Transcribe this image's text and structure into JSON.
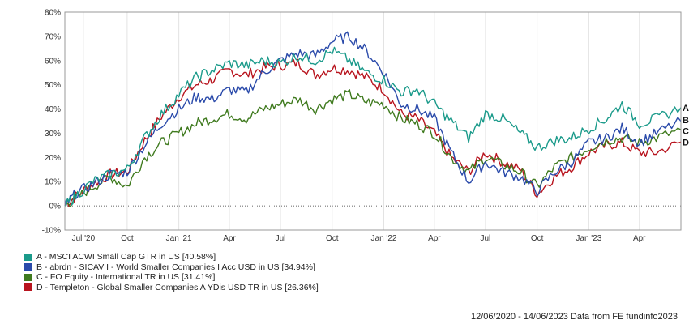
{
  "chart_data": {
    "type": "line",
    "title": "",
    "xlabel": "",
    "ylabel": "",
    "ylim": [
      -10,
      80
    ],
    "yticks": [
      "-10%",
      "0%",
      "10%",
      "20%",
      "30%",
      "40%",
      "50%",
      "60%",
      "70%",
      "80%"
    ],
    "xticks": [
      "Jul '20",
      "Oct",
      "Jan '21",
      "Apr",
      "Jul",
      "Oct",
      "Jan '22",
      "Apr",
      "Jul",
      "Oct",
      "Jan '23",
      "Apr"
    ],
    "x_range": [
      "2020-06-12",
      "2023-06-14"
    ],
    "grid": "vertical gridlines at each month tick; dotted zero line",
    "x": [
      "2020-06-12",
      "2020-07-01",
      "2020-08-01",
      "2020-09-01",
      "2020-10-01",
      "2020-11-01",
      "2020-12-01",
      "2021-01-01",
      "2021-02-01",
      "2021-03-01",
      "2021-04-01",
      "2021-05-01",
      "2021-06-01",
      "2021-07-01",
      "2021-08-01",
      "2021-09-01",
      "2021-10-01",
      "2021-11-01",
      "2021-12-01",
      "2022-01-01",
      "2022-02-01",
      "2022-03-01",
      "2022-04-01",
      "2022-05-01",
      "2022-06-01",
      "2022-07-01",
      "2022-08-01",
      "2022-09-01",
      "2022-10-01",
      "2022-11-01",
      "2022-12-01",
      "2023-01-01",
      "2023-02-01",
      "2023-03-01",
      "2023-04-01",
      "2023-05-01",
      "2023-06-14"
    ],
    "series": [
      {
        "name": "A - MSCI ACWI Small Cap GTR in US [40.58%]",
        "end_marker": "A",
        "color": "#1a9a8a",
        "values": [
          0,
          4,
          10,
          13,
          15,
          28,
          38,
          46,
          53,
          56,
          59,
          58,
          60,
          59,
          62,
          60,
          64,
          60,
          55,
          52,
          47,
          48,
          42,
          35,
          28,
          38,
          36,
          30,
          24,
          27,
          28,
          32,
          36,
          42,
          34,
          36,
          40.58
        ]
      },
      {
        "name": "B - abrdn - SICAV I - World Smaller Companies I Acc USD in US [34.94%]",
        "end_marker": "B",
        "color": "#2a4aaa",
        "values": [
          0,
          5,
          9,
          13,
          14,
          25,
          34,
          40,
          45,
          44,
          48,
          47,
          55,
          60,
          63,
          62,
          68,
          70,
          64,
          55,
          42,
          40,
          36,
          22,
          10,
          18,
          14,
          12,
          6,
          14,
          18,
          26,
          28,
          32,
          26,
          30,
          34.94
        ]
      },
      {
        "name": "C - FO Equity - International TR in US [31.41%]",
        "end_marker": "C",
        "color": "#3f7a1e",
        "values": [
          0,
          3,
          8,
          12,
          8,
          20,
          26,
          30,
          34,
          36,
          38,
          36,
          40,
          42,
          44,
          40,
          44,
          46,
          43,
          42,
          36,
          34,
          30,
          20,
          14,
          20,
          17,
          14,
          8,
          16,
          20,
          24,
          27,
          28,
          26,
          28,
          31.41
        ]
      },
      {
        "name": "D - Templeton - Global Smaller Companies A YDis USD TR in US [26.36%]",
        "end_marker": "D",
        "color": "#b8141e",
        "values": [
          0,
          4,
          9,
          13,
          14,
          27,
          37,
          45,
          50,
          52,
          56,
          54,
          57,
          58,
          59,
          54,
          57,
          56,
          53,
          48,
          38,
          36,
          30,
          20,
          14,
          22,
          18,
          15,
          5,
          12,
          16,
          22,
          25,
          26,
          22,
          22,
          26.36
        ]
      }
    ]
  },
  "legend_items": [
    {
      "label": "A - MSCI ACWI Small Cap GTR in US [40.58%]",
      "color": "#1a9a8a"
    },
    {
      "label": "B - abrdn - SICAV I - World Smaller Companies I Acc USD in US [34.94%]",
      "color": "#2a4aaa"
    },
    {
      "label": "C - FO Equity - International TR in US [31.41%]",
      "color": "#3f7a1e"
    },
    {
      "label": "D - Templeton - Global Smaller Companies A YDis USD TR in US [26.36%]",
      "color": "#b8141e"
    }
  ],
  "footer": "12/06/2020 - 14/06/2023 Data from FE fundinfo2023"
}
